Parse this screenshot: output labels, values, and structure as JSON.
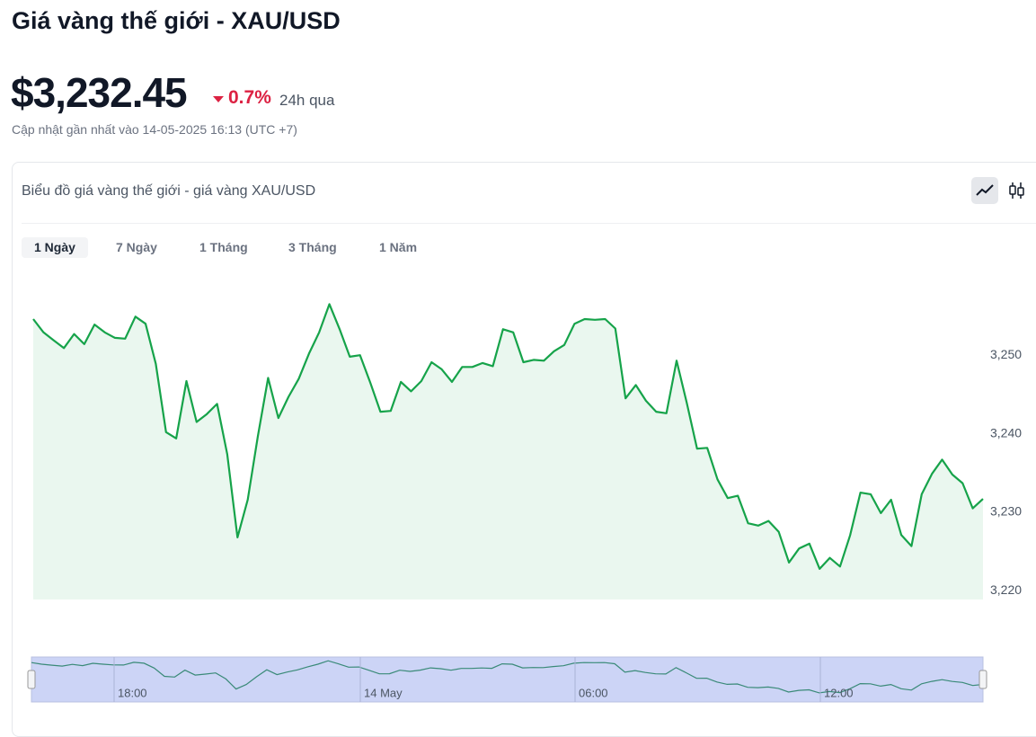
{
  "header": {
    "title": "Giá vàng thế giới - XAU/USD",
    "price": "$3,232.45",
    "change": "0.7%",
    "change_period": "24h qua",
    "updated": "Cập nhật gần nhất vào 14-05-2025 16:13 (UTC +7)"
  },
  "card": {
    "title": "Biểu đồ giá vàng thế giới - giá vàng XAU/USD",
    "tabs": [
      "1 Ngày",
      "7 Ngày",
      "1 Tháng",
      "3 Tháng",
      "1 Năm"
    ]
  },
  "chart_data": {
    "type": "line",
    "color": "#16a34a",
    "values": [
      3254.6,
      3252.9,
      3251.9,
      3250.9,
      3252.7,
      3251.4,
      3253.9,
      3252.9,
      3252.2,
      3252.1,
      3254.9,
      3254.0,
      3248.9,
      3240.2,
      3239.4,
      3246.7,
      3241.5,
      3242.5,
      3243.8,
      3237.4,
      3226.8,
      3231.6,
      3239.7,
      3247.1,
      3242.0,
      3244.7,
      3247.0,
      3250.2,
      3252.9,
      3256.5,
      3253.3,
      3249.8,
      3250.0,
      3246.5,
      3242.8,
      3242.9,
      3246.6,
      3245.4,
      3246.7,
      3249.1,
      3248.2,
      3246.6,
      3248.5,
      3248.5,
      3249.0,
      3248.6,
      3253.3,
      3252.9,
      3249.1,
      3249.4,
      3249.3,
      3250.5,
      3251.3,
      3254.0,
      3254.6,
      3254.5,
      3254.6,
      3253.4,
      3244.5,
      3246.2,
      3244.2,
      3242.8,
      3242.6,
      3249.3,
      3243.9,
      3238.1,
      3238.2,
      3234.2,
      3231.8,
      3232.1,
      3228.6,
      3228.3,
      3228.9,
      3227.5,
      3223.6,
      3225.4,
      3226.0,
      3222.8,
      3224.2,
      3223.1,
      3227.1,
      3232.5,
      3232.3,
      3229.9,
      3231.6,
      3227.1,
      3225.7,
      3232.3,
      3234.9,
      3236.7,
      3234.8,
      3233.7,
      3230.5,
      3231.7
    ],
    "ylim": [
      3218.9,
      3258.6
    ],
    "yticks": [
      {
        "value": 3220,
        "label": "3,220"
      },
      {
        "value": 3230,
        "label": "3,230"
      },
      {
        "value": 3240,
        "label": "3,240"
      },
      {
        "value": 3250,
        "label": "3,250"
      }
    ]
  },
  "navigator": {
    "labels": [
      "18:00",
      "14 May",
      "06:00",
      "12:00"
    ]
  }
}
